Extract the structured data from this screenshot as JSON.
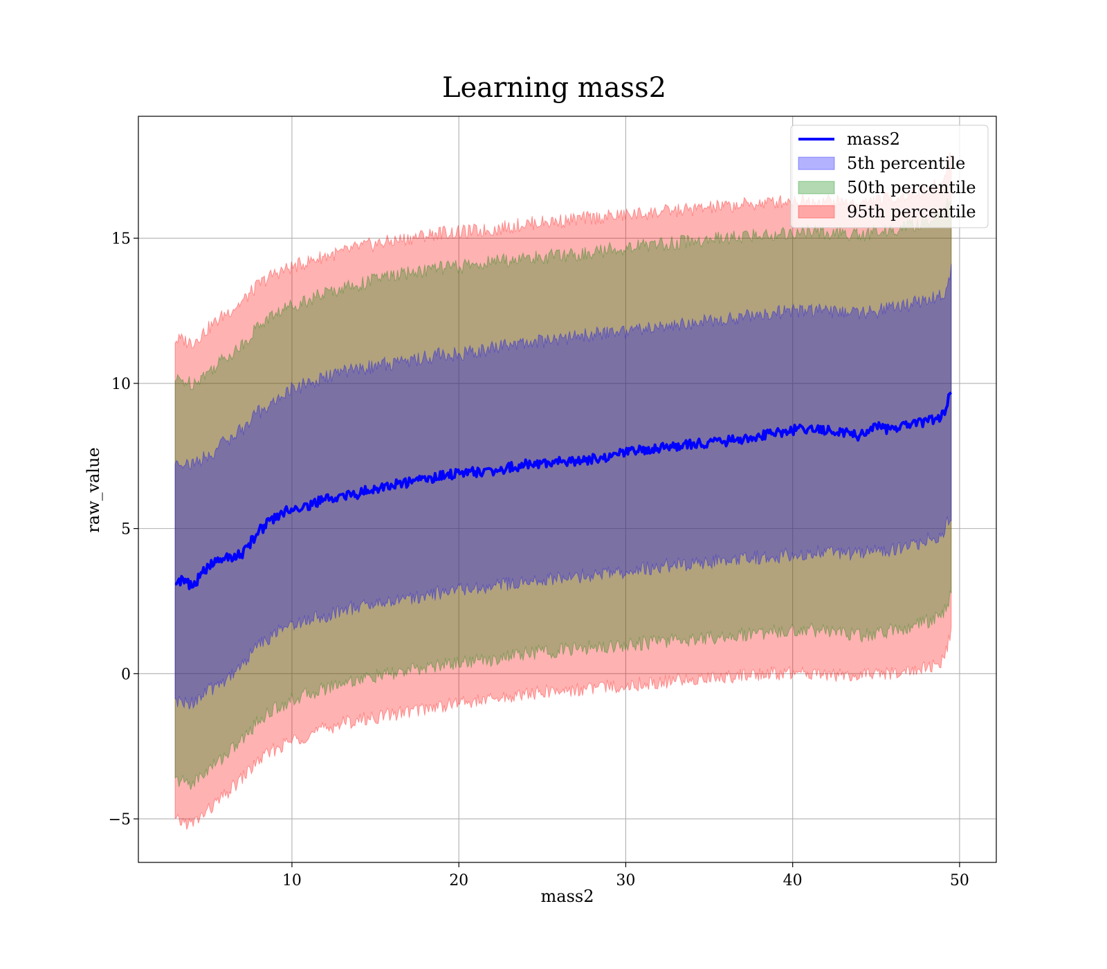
{
  "chart_data": {
    "type": "area",
    "title": "Learning mass2",
    "xlabel": "mass2",
    "ylabel": "raw_value",
    "xlim": [
      0.8,
      52.2
    ],
    "ylim": [
      -6.5,
      19.2
    ],
    "xticks": [
      10,
      20,
      30,
      40,
      50
    ],
    "yticks": [
      -5,
      0,
      5,
      10,
      15
    ],
    "xtick_labels": [
      "10",
      "20",
      "30",
      "40",
      "50"
    ],
    "ytick_labels": [
      "−5",
      "0",
      "5",
      "10",
      "15"
    ],
    "grid": true,
    "legend_position": "top-right",
    "x": [
      3.0,
      3.5,
      4.0,
      5,
      6,
      7,
      8,
      9,
      10,
      11,
      12,
      13,
      14,
      15,
      16,
      17,
      18,
      19,
      20,
      22,
      24,
      26,
      28,
      30,
      32,
      34,
      36,
      38,
      40,
      42,
      44,
      45,
      46,
      47,
      48,
      49,
      49.5
    ],
    "series": [
      {
        "name": "mass2",
        "kind": "line",
        "color": "#0000ff",
        "values": [
          3.2,
          3.2,
          3.0,
          3.7,
          4.0,
          4.1,
          4.9,
          5.4,
          5.7,
          5.8,
          6.0,
          6.1,
          6.2,
          6.4,
          6.5,
          6.6,
          6.7,
          6.8,
          6.9,
          7.0,
          7.2,
          7.3,
          7.4,
          7.6,
          7.8,
          7.9,
          8.0,
          8.2,
          8.4,
          8.4,
          8.2,
          8.5,
          8.4,
          8.6,
          8.7,
          8.9,
          9.7
        ]
      },
      {
        "name": "5th percentile",
        "kind": "band",
        "color": "#0000ff",
        "lower": [
          -1.0,
          -1.0,
          -1.0,
          -0.6,
          -0.2,
          0.3,
          1.0,
          1.4,
          1.7,
          1.9,
          2.0,
          2.2,
          2.3,
          2.4,
          2.5,
          2.6,
          2.7,
          2.8,
          2.9,
          3.0,
          3.2,
          3.3,
          3.4,
          3.5,
          3.7,
          3.8,
          3.9,
          4.0,
          4.1,
          4.2,
          4.1,
          4.2,
          4.3,
          4.4,
          4.6,
          4.8,
          5.5
        ],
        "upper": [
          7.3,
          7.3,
          7.2,
          7.5,
          8.0,
          8.4,
          9.0,
          9.4,
          9.8,
          10.0,
          10.2,
          10.4,
          10.5,
          10.6,
          10.7,
          10.8,
          10.9,
          11.0,
          11.0,
          11.2,
          11.4,
          11.5,
          11.7,
          11.8,
          12.0,
          12.1,
          12.2,
          12.4,
          12.5,
          12.5,
          12.4,
          12.5,
          12.6,
          12.7,
          12.9,
          13.0,
          13.9
        ]
      },
      {
        "name": "50th percentile",
        "kind": "band",
        "color": "#008000",
        "lower": [
          -3.7,
          -3.7,
          -3.8,
          -3.3,
          -2.8,
          -2.3,
          -1.6,
          -1.2,
          -0.9,
          -0.7,
          -0.5,
          -0.3,
          -0.2,
          -0.1,
          0.0,
          0.1,
          0.2,
          0.3,
          0.4,
          0.5,
          0.7,
          0.8,
          0.9,
          1.0,
          1.1,
          1.2,
          1.3,
          1.4,
          1.5,
          1.5,
          1.3,
          1.4,
          1.5,
          1.6,
          1.8,
          2.0,
          2.8
        ],
        "upper": [
          10.1,
          10.1,
          10.0,
          10.4,
          10.9,
          11.3,
          12.0,
          12.4,
          12.7,
          12.9,
          13.1,
          13.3,
          13.4,
          13.6,
          13.7,
          13.8,
          13.9,
          14.0,
          14.0,
          14.2,
          14.3,
          14.4,
          14.5,
          14.7,
          14.8,
          14.9,
          15.0,
          15.1,
          15.2,
          15.2,
          15.1,
          15.2,
          15.3,
          15.4,
          15.6,
          15.8,
          16.5
        ]
      },
      {
        "name": "95th percentile",
        "kind": "band",
        "color": "#ff0000",
        "lower": [
          -5.1,
          -5.1,
          -5.2,
          -4.7,
          -4.2,
          -3.6,
          -3.0,
          -2.6,
          -2.3,
          -2.1,
          -1.9,
          -1.7,
          -1.6,
          -1.5,
          -1.4,
          -1.3,
          -1.2,
          -1.1,
          -1.0,
          -0.9,
          -0.7,
          -0.6,
          -0.5,
          -0.4,
          -0.3,
          -0.2,
          -0.1,
          0.0,
          0.0,
          0.0,
          -0.1,
          0.0,
          0.0,
          0.1,
          0.2,
          0.4,
          1.4
        ],
        "upper": [
          11.5,
          11.5,
          11.4,
          11.9,
          12.4,
          12.8,
          13.4,
          13.8,
          14.0,
          14.2,
          14.4,
          14.5,
          14.7,
          14.8,
          14.9,
          15.0,
          15.1,
          15.2,
          15.2,
          15.3,
          15.5,
          15.6,
          15.7,
          15.8,
          15.9,
          16.0,
          16.1,
          16.2,
          16.3,
          16.3,
          16.2,
          16.3,
          16.4,
          16.5,
          16.7,
          16.9,
          18.0
        ]
      }
    ]
  }
}
